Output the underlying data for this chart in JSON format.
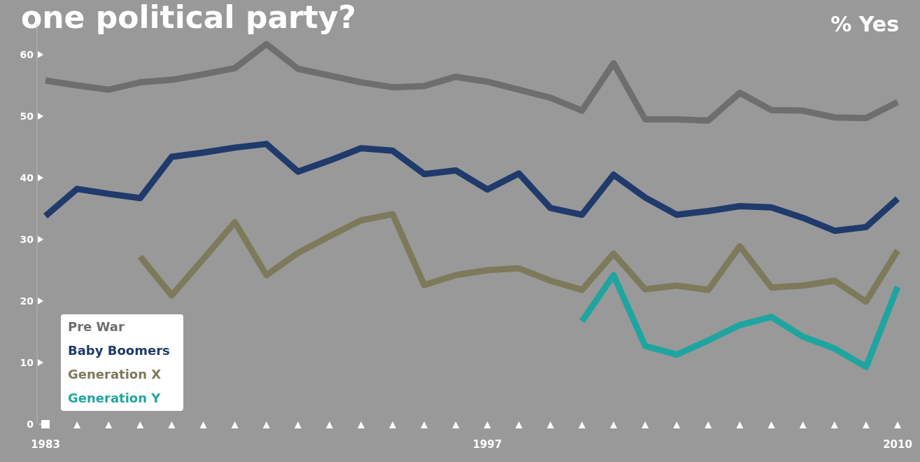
{
  "chart_data": {
    "type": "line",
    "title": "one political party?",
    "ylabel": "% Yes",
    "x": [
      1983,
      1984,
      1985,
      1986,
      1987,
      1988,
      1989,
      1990,
      1991,
      1992,
      1993,
      1994,
      1995,
      1996,
      1997,
      1998,
      1999,
      2000,
      2001,
      2002,
      2003,
      2004,
      2005,
      2006,
      2007,
      2008,
      2009,
      2010
    ],
    "xlim": [
      1983,
      2010
    ],
    "xticks": [
      1983,
      {
        "value": 1984,
        "label": null
      },
      {
        "value": 1985,
        "label": null
      },
      {
        "value": 1986,
        "label": null
      },
      {
        "value": 1987,
        "label": null
      },
      {
        "value": 1988,
        "label": null
      },
      {
        "value": 1989,
        "label": null
      },
      {
        "value": 1990,
        "label": null
      },
      {
        "value": 1991,
        "label": null
      },
      {
        "value": 1992,
        "label": null
      },
      {
        "value": 1993,
        "label": null
      },
      {
        "value": 1994,
        "label": null
      },
      {
        "value": 1995,
        "label": null
      },
      {
        "value": 1996,
        "label": null
      },
      1997,
      {
        "value": 1998,
        "label": null
      },
      {
        "value": 1999,
        "label": null
      },
      {
        "value": 2000,
        "label": null
      },
      {
        "value": 2001,
        "label": null
      },
      {
        "value": 2002,
        "label": null
      },
      {
        "value": 2003,
        "label": null
      },
      {
        "value": 2004,
        "label": null
      },
      {
        "value": 2005,
        "label": null
      },
      {
        "value": 2006,
        "label": null
      },
      {
        "value": 2007,
        "label": null
      },
      {
        "value": 2008,
        "label": null
      },
      {
        "value": 2009,
        "label": null
      },
      2010
    ],
    "ylim": [
      0,
      65
    ],
    "yticks": [
      0,
      10,
      20,
      30,
      40,
      50,
      60
    ],
    "grid": false,
    "legend": "bottom left",
    "marker": "none",
    "line_style": "solid",
    "series": [
      {
        "name": "Pre War",
        "color": "#6e6e70",
        "values": [
          55.8,
          55,
          54.3,
          55.5,
          55.9,
          56.8,
          57.8,
          61.7,
          57.7,
          56.6,
          55.5,
          54.7,
          54.9,
          56.4,
          55.6,
          54.3,
          53,
          50.9,
          58.6,
          49.5,
          49.5,
          49.3,
          53.8,
          51,
          50.9,
          49.8,
          49.7,
          52.3
        ]
      },
      {
        "name": "Baby Boomers",
        "color": "#1f3a6b",
        "values": [
          33.8,
          38.2,
          37.4,
          36.7,
          43.4,
          44.1,
          44.9,
          45.5,
          41,
          42.8,
          44.8,
          44.4,
          40.6,
          41.2,
          38.1,
          40.7,
          35.1,
          34,
          40.5,
          36.8,
          34,
          34.6,
          35.4,
          35.2,
          33.5,
          31.4,
          32,
          36.6
        ]
      },
      {
        "name": "Generation X",
        "color": "#7d7a5c",
        "values": [
          null,
          null,
          null,
          27.2,
          20.9,
          26.8,
          32.8,
          24.2,
          27.8,
          30.5,
          33.1,
          34.1,
          22.6,
          24.2,
          25,
          25.3,
          23.3,
          21.8,
          27.7,
          21.9,
          22.5,
          21.8,
          28.9,
          22.2,
          22.5,
          23.3,
          19.9,
          28.2
        ]
      },
      {
        "name": "Generation Y",
        "color": "#1fa5a0",
        "values": [
          null,
          null,
          null,
          null,
          null,
          null,
          null,
          null,
          null,
          null,
          null,
          null,
          null,
          null,
          null,
          null,
          null,
          16.7,
          24.2,
          12.7,
          11.3,
          13.6,
          16.1,
          17.4,
          14.2,
          12.3,
          9.3,
          22.3
        ]
      }
    ]
  }
}
